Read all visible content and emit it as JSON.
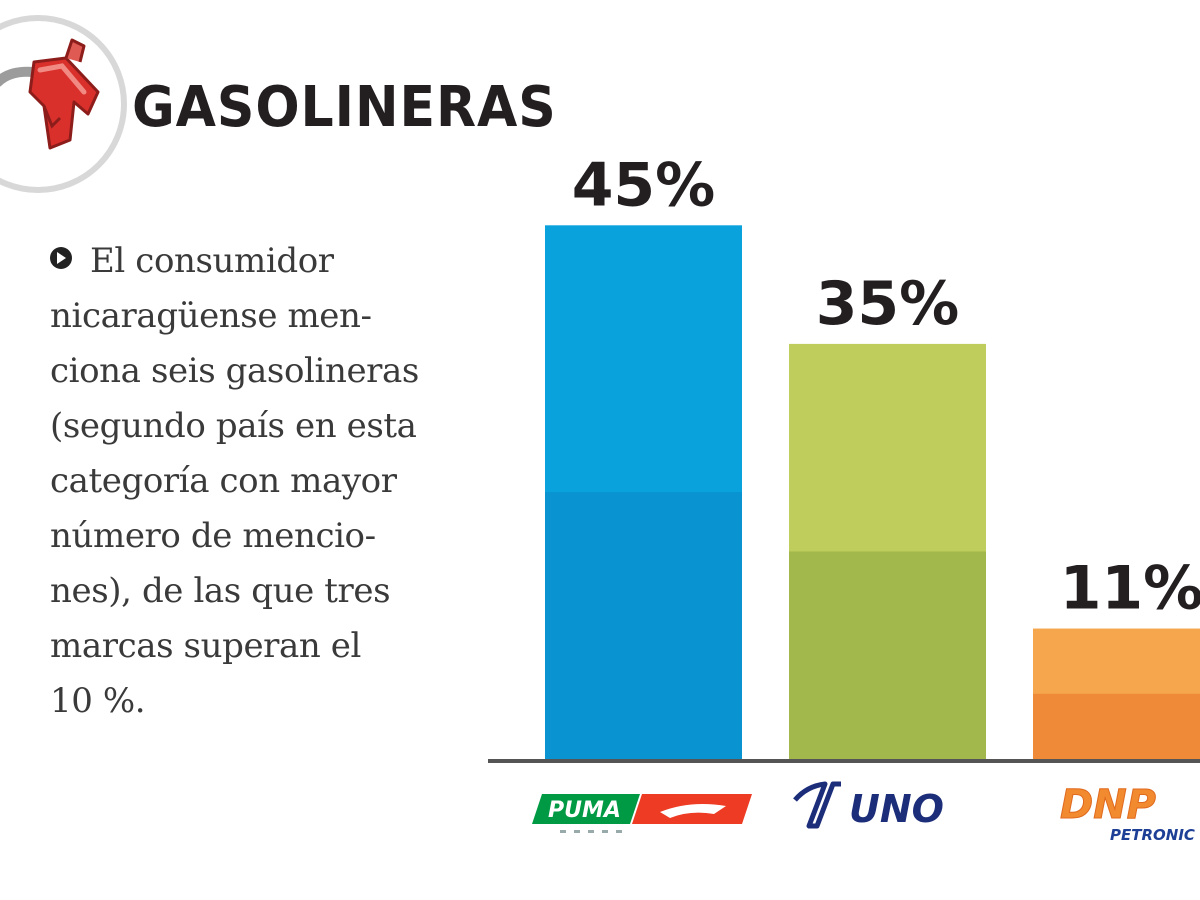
{
  "header": {
    "title": "GASOLINERAS",
    "icon": "fuel-nozzle-icon"
  },
  "description": {
    "lines": [
      "El consumidor",
      "nicaragüense men-",
      "ciona seis gasolineras",
      "(segundo país en esta",
      "categoría con mayor",
      "número de mencio-",
      "nes), de las que tres",
      "marcas superan el",
      "10 %."
    ]
  },
  "chart_data": {
    "type": "bar",
    "categories": [
      "PUMA",
      "UNO",
      "DNP PETRONIC"
    ],
    "values": [
      45,
      35,
      11
    ],
    "value_labels": [
      "45%",
      "35%",
      "11%"
    ],
    "ylim": [
      0,
      50
    ],
    "colors": [
      {
        "top": "#0aa2dd",
        "bottom": "#0993d0"
      },
      {
        "top": "#bfcd5c",
        "bottom": "#a3b84c"
      },
      {
        "top": "#f6a74e",
        "bottom": "#ee8a38"
      }
    ],
    "grid": false,
    "logos": {
      "puma": {
        "text": "PUMA",
        "colors": [
          "#009a44",
          "#ee3b24"
        ]
      },
      "uno": {
        "text": "UNO",
        "color": "#1c2d7a"
      },
      "dnp": {
        "text": "DNP",
        "sub": "PETRONIC",
        "colors": [
          "#f28a30",
          "#1d3f95"
        ]
      }
    }
  }
}
